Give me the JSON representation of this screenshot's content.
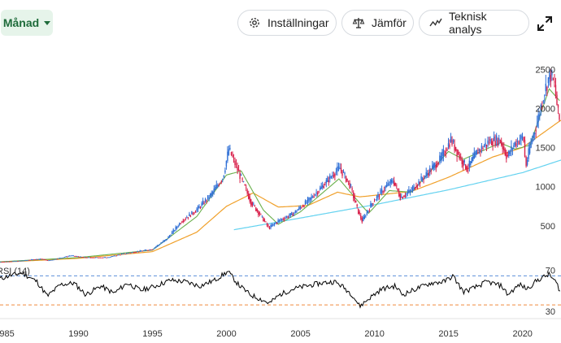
{
  "toolbar": {
    "period_label": "Månad",
    "settings_label": "Inställningar",
    "compare_label": "Jämför",
    "technical_label": "Teknisk analys"
  },
  "chart_data": [
    {
      "type": "candlestick",
      "title": "",
      "y_ticks": [
        500,
        1000,
        1500,
        2000,
        2500
      ],
      "ylim": [
        0,
        2700
      ],
      "x_ticks": [
        "1985",
        "1990",
        "1995",
        "2000",
        "2005",
        "2010",
        "2015",
        "2020"
      ],
      "xlim": [
        1984.7,
        2022.6
      ],
      "colors": {
        "up": "#2f6fd6",
        "down": "#d81f4a",
        "ma_short": "#6ab04c",
        "ma_long": "#f0a02a",
        "ma_extra": "#63d2f0"
      },
      "price_path": [
        [
          1984.7,
          40
        ],
        [
          1986,
          50
        ],
        [
          1987.5,
          80
        ],
        [
          1988,
          55
        ],
        [
          1989.5,
          120
        ],
        [
          1990.5,
          95
        ],
        [
          1992,
          95
        ],
        [
          1993,
          140
        ],
        [
          1994,
          170
        ],
        [
          1995,
          200
        ],
        [
          1996,
          330
        ],
        [
          1997,
          560
        ],
        [
          1998,
          700
        ],
        [
          1999,
          900
        ],
        [
          1999.8,
          1120
        ],
        [
          2000.2,
          1480
        ],
        [
          2001,
          1120
        ],
        [
          2001.7,
          800
        ],
        [
          2002.4,
          620
        ],
        [
          2002.9,
          470
        ],
        [
          2003.5,
          560
        ],
        [
          2004.5,
          650
        ],
        [
          2005.5,
          810
        ],
        [
          2006.4,
          980
        ],
        [
          2007.2,
          1150
        ],
        [
          2007.7,
          1240
        ],
        [
          2008.4,
          1010
        ],
        [
          2008.9,
          700
        ],
        [
          2009.2,
          560
        ],
        [
          2009.9,
          800
        ],
        [
          2010.8,
          1000
        ],
        [
          2011.3,
          1080
        ],
        [
          2011.8,
          860
        ],
        [
          2012.5,
          950
        ],
        [
          2013.5,
          1150
        ],
        [
          2014.5,
          1350
        ],
        [
          2015.2,
          1600
        ],
        [
          2015.8,
          1380
        ],
        [
          2016.3,
          1230
        ],
        [
          2017,
          1450
        ],
        [
          2017.8,
          1580
        ],
        [
          2018.5,
          1600
        ],
        [
          2019,
          1380
        ],
        [
          2019.5,
          1550
        ],
        [
          2020.1,
          1640
        ],
        [
          2020.25,
          1250
        ],
        [
          2020.6,
          1560
        ],
        [
          2021,
          1800
        ],
        [
          2021.5,
          2200
        ],
        [
          2021.9,
          2450
        ],
        [
          2022.2,
          2300
        ],
        [
          2022.5,
          1850
        ]
      ],
      "ma_short_path": [
        [
          1984.7,
          40
        ],
        [
          1990,
          95
        ],
        [
          1995,
          190
        ],
        [
          1998,
          620
        ],
        [
          2000,
          1150
        ],
        [
          2001,
          1200
        ],
        [
          2002.5,
          700
        ],
        [
          2003.5,
          520
        ],
        [
          2005,
          680
        ],
        [
          2007.6,
          1100
        ],
        [
          2008.5,
          900
        ],
        [
          2009.6,
          660
        ],
        [
          2011,
          950
        ],
        [
          2012.5,
          930
        ],
        [
          2015,
          1450
        ],
        [
          2016,
          1350
        ],
        [
          2018.5,
          1560
        ],
        [
          2019.5,
          1480
        ],
        [
          2020.5,
          1530
        ],
        [
          2021.8,
          2250
        ],
        [
          2022.5,
          2100
        ]
      ],
      "ma_long_path": [
        [
          1984.7,
          35
        ],
        [
          1990,
          85
        ],
        [
          1995,
          170
        ],
        [
          1998,
          420
        ],
        [
          2000,
          750
        ],
        [
          2001.8,
          920
        ],
        [
          2003.5,
          740
        ],
        [
          2005.5,
          760
        ],
        [
          2007.5,
          930
        ],
        [
          2009,
          870
        ],
        [
          2010.5,
          900
        ],
        [
          2012.5,
          940
        ],
        [
          2015,
          1120
        ],
        [
          2018,
          1380
        ],
        [
          2020,
          1500
        ],
        [
          2022.6,
          1850
        ]
      ],
      "ma_extra_path": [
        [
          2000.5,
          450
        ],
        [
          2005,
          600
        ],
        [
          2010,
          770
        ],
        [
          2015,
          960
        ],
        [
          2020,
          1180
        ],
        [
          2022.6,
          1340
        ]
      ]
    },
    {
      "type": "line",
      "title": "",
      "series_label": "RSI (14)",
      "ylim": [
        20,
        85
      ],
      "y_ticks": [
        30,
        70
      ],
      "reference_lines": [
        {
          "value": 70,
          "color": "#5b8fd9"
        },
        {
          "value": 30,
          "color": "#f08a3c"
        }
      ],
      "series": [
        {
          "color": "#000000",
          "points": [
            [
              1984.7,
              66
            ],
            [
              1985.3,
              70
            ],
            [
              1986.2,
              74
            ],
            [
              1987.2,
              62
            ],
            [
              1987.9,
              42
            ],
            [
              1988.8,
              58
            ],
            [
              1989.7,
              60
            ],
            [
              1990.5,
              44
            ],
            [
              1991.5,
              56
            ],
            [
              1992.4,
              46
            ],
            [
              1993.3,
              60
            ],
            [
              1994.2,
              50
            ],
            [
              1995.2,
              56
            ],
            [
              1996.2,
              64
            ],
            [
              1997.2,
              62
            ],
            [
              1998.2,
              56
            ],
            [
              1999.2,
              64
            ],
            [
              2000.1,
              76
            ],
            [
              2000.8,
              58
            ],
            [
              2001.6,
              44
            ],
            [
              2002.3,
              38
            ],
            [
              2002.9,
              32
            ],
            [
              2003.6,
              44
            ],
            [
              2004.5,
              52
            ],
            [
              2005.4,
              56
            ],
            [
              2006.4,
              60
            ],
            [
              2007.3,
              62
            ],
            [
              2007.8,
              56
            ],
            [
              2008.5,
              44
            ],
            [
              2009.0,
              28
            ],
            [
              2009.7,
              40
            ],
            [
              2010.5,
              52
            ],
            [
              2011.4,
              56
            ],
            [
              2011.9,
              44
            ],
            [
              2012.8,
              52
            ],
            [
              2013.8,
              60
            ],
            [
              2014.7,
              62
            ],
            [
              2015.3,
              70
            ],
            [
              2016.0,
              48
            ],
            [
              2016.8,
              54
            ],
            [
              2017.6,
              62
            ],
            [
              2018.6,
              56
            ],
            [
              2019.0,
              44
            ],
            [
              2019.8,
              58
            ],
            [
              2020.3,
              52
            ],
            [
              2021.0,
              64
            ],
            [
              2021.8,
              72
            ],
            [
              2022.3,
              60
            ],
            [
              2022.6,
              46
            ]
          ]
        }
      ]
    }
  ]
}
